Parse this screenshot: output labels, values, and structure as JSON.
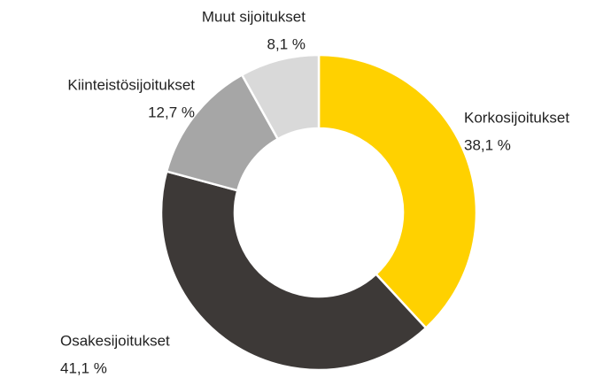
{
  "chart_data": {
    "type": "donut",
    "categories": [
      "Korkosijoitukset",
      "Osakesijoitukset",
      "Kiinteistösijoitukset",
      "Muut sijoitukset"
    ],
    "values": [
      38.1,
      41.1,
      12.7,
      8.1
    ],
    "value_labels": [
      "38,1 %",
      "41,1 %",
      "12,7 %",
      "8,1 %"
    ],
    "colors": [
      "#ffd100",
      "#3d3937",
      "#a6a6a6",
      "#d9d9d9"
    ]
  }
}
